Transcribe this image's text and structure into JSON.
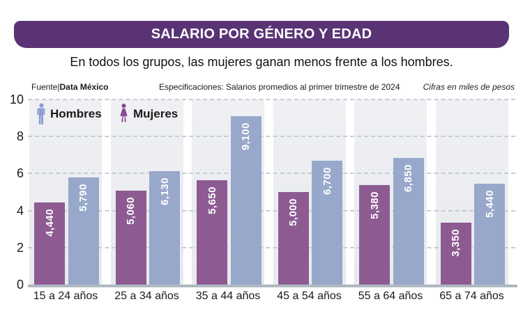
{
  "header": {
    "title": "SALARIO POR GÉNERO Y EDAD",
    "subtitle": "En todos los grupos, las mujeres ganan menos frente a los hombres."
  },
  "meta": {
    "source_prefix": "Fuente|",
    "source_name": "Data México",
    "specs": "Especificaciones: Salarios promedios al primer trimestre de 2024",
    "units_note": "Cifras en miles de pesos"
  },
  "legend": [
    {
      "label": "Hombres",
      "icon": "man-icon",
      "color": "#8a9cd0"
    },
    {
      "label": "Mujeres",
      "icon": "woman-icon",
      "color": "#8c4795"
    }
  ],
  "colors": {
    "banner": "#5a3375",
    "band_background": "#e9ebee",
    "gridline": "#c7cdd2",
    "axis_line": "#aeb8c1",
    "bar_label_text": "#ffffff",
    "text_dark": "#1a1a1a"
  },
  "chart_data": {
    "type": "bar",
    "title": "SALARIO POR GÉNERO Y EDAD",
    "subtitle": "En todos los grupos, las mujeres ganan menos frente a los hombres.",
    "units": "miles de pesos",
    "categories": [
      "15 a 24 años",
      "25 a 34 años",
      "35 a 44 años",
      "45 a 54 años",
      "55 a 64 años",
      "65 a 74 años"
    ],
    "series": [
      {
        "name": "Mujeres",
        "color": "#8d5b92",
        "values": [
          4440,
          5060,
          5650,
          5000,
          5380,
          3350
        ],
        "labels": [
          "4,440",
          "5,060",
          "5,650",
          "5,000",
          "5,380",
          "3,350"
        ]
      },
      {
        "name": "Hombres",
        "color": "#98a8ca",
        "values": [
          5790,
          6130,
          9100,
          6700,
          6850,
          5440
        ],
        "labels": [
          "5,790",
          "6,130",
          "9,100",
          "6,700",
          "6,850",
          "5,440"
        ]
      }
    ],
    "xlabel": "",
    "ylabel": "",
    "ylim": [
      0,
      10
    ],
    "y_ticks": [
      0,
      2,
      4,
      6,
      8,
      10
    ],
    "value_divisor": 1000,
    "grid": "horizontal dashed",
    "legend_position": "top-left inside plot",
    "bar_value_labels": "rotated 90° CCW, white, inside bar near top"
  }
}
